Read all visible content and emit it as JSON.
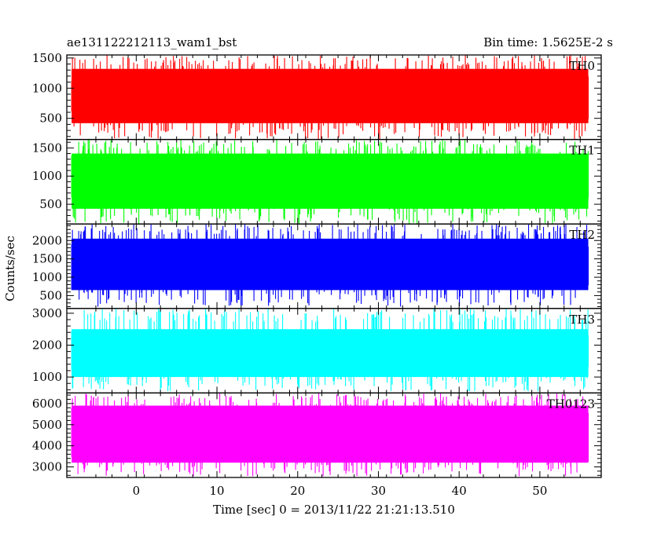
{
  "header": {
    "left_title": "ae131122212113_wam1_bst",
    "right_title": "Bin time: 1.5625E-2 s"
  },
  "chart_data": {
    "type": "line",
    "title": "ae131122212113_wam1_bst",
    "subtitle": "Bin time: 1.5625E-2 s",
    "xlabel": "Time [sec] 0 = 2013/11/22 21:21:13.510",
    "ylabel": "Counts/sec",
    "xlim": [
      -8.6,
      57.6
    ],
    "x_ticks": [
      0,
      10,
      20,
      30,
      40,
      50
    ],
    "data_x_range": [
      -8,
      56
    ],
    "grid": false,
    "panels": [
      {
        "name": "TH0",
        "color": "#ff0000",
        "ylim": [
          150,
          1550
        ],
        "y_ticks": [
          500,
          1000,
          1500
        ],
        "band_low": 420,
        "band_high": 1320,
        "spike_min": 150,
        "spike_max": 1550
      },
      {
        "name": "TH1",
        "color": "#00ff00",
        "ylim": [
          150,
          1650
        ],
        "y_ticks": [
          500,
          1000,
          1500
        ],
        "band_low": 420,
        "band_high": 1400,
        "spike_min": 150,
        "spike_max": 1650
      },
      {
        "name": "TH2",
        "color": "#0000ff",
        "ylim": [
          150,
          2450
        ],
        "y_ticks": [
          500,
          1000,
          1500,
          2000
        ],
        "band_low": 650,
        "band_high": 2050,
        "spike_min": 200,
        "spike_max": 2450
      },
      {
        "name": "TH3",
        "color": "#00ffff",
        "ylim": [
          500,
          3150
        ],
        "y_ticks": [
          1000,
          2000,
          3000
        ],
        "band_low": 1000,
        "band_high": 2500,
        "spike_min": 550,
        "spike_max": 3150
      },
      {
        "name": "TH0123",
        "color": "#ff00ff",
        "ylim": [
          2500,
          6500
        ],
        "y_ticks": [
          3000,
          4000,
          5000,
          6000
        ],
        "band_low": 3200,
        "band_high": 5900,
        "spike_min": 2550,
        "spike_max": 6500
      }
    ]
  }
}
